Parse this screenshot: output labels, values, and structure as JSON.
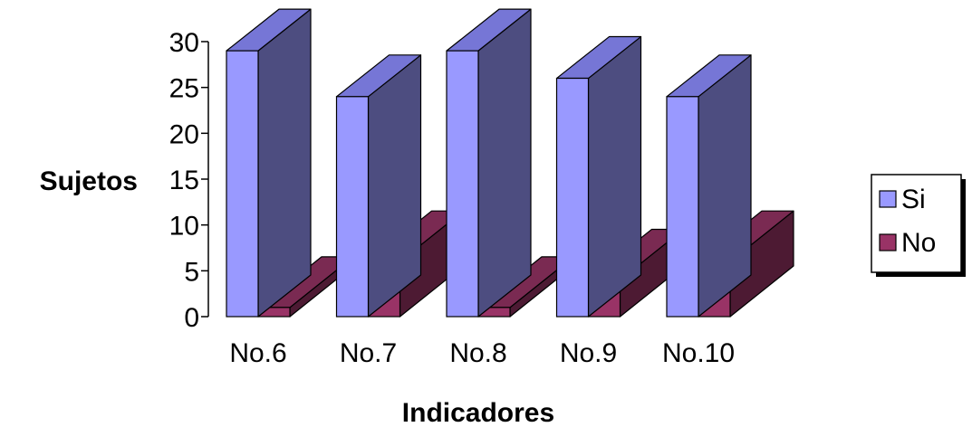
{
  "chart_data": {
    "type": "bar",
    "categories": [
      "No.6",
      "No.7",
      "No.8",
      "No.9",
      "No.10"
    ],
    "series": [
      {
        "name": "Si",
        "values": [
          29,
          24,
          29,
          26,
          24
        ],
        "color": "#9999ff",
        "top_color": "#7676d6",
        "side_color": "#4d4d80"
      },
      {
        "name": "No",
        "values": [
          1,
          6,
          1,
          4,
          6
        ],
        "color": "#993366",
        "top_color": "#7a2a52",
        "side_color": "#4d1a33"
      }
    ],
    "xlabel": "Indicadores",
    "ylabel": "Sujetos",
    "ylim": [
      0,
      30
    ],
    "yticks": [
      0,
      5,
      10,
      15,
      20,
      25,
      30
    ],
    "legend": "right",
    "style": "3d-clustered",
    "grid": false
  }
}
